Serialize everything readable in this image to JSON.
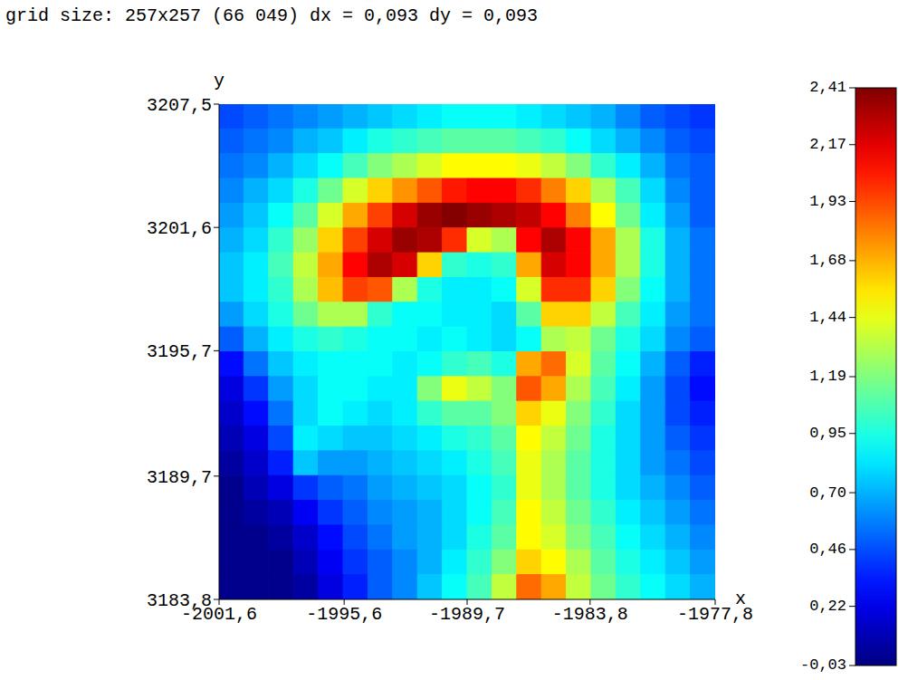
{
  "chart_data": {
    "type": "heatmap",
    "title": "grid size: 257x257 (66 049) dx = 0,093 dy = 0,093",
    "x_label": "x",
    "y_label": "y",
    "xlim": [
      -2001.6,
      -1977.8
    ],
    "ylim": [
      3183.8,
      3207.5
    ],
    "xticks": [
      {
        "value": -2001.6,
        "label": "-2001,6"
      },
      {
        "value": -1995.6,
        "label": "-1995,6"
      },
      {
        "value": -1989.7,
        "label": "-1989,7"
      },
      {
        "value": -1983.8,
        "label": "-1983,8"
      },
      {
        "value": -1977.8,
        "label": "-1977,8"
      }
    ],
    "yticks": [
      {
        "value": 3183.8,
        "label": "3183,8"
      },
      {
        "value": 3189.7,
        "label": "3189,7"
      },
      {
        "value": 3195.7,
        "label": "3195,7"
      },
      {
        "value": 3201.6,
        "label": "3201,6"
      },
      {
        "value": 3207.5,
        "label": "3207,5"
      }
    ],
    "x": [
      -2001.005,
      -1999.815,
      -1998.625,
      -1997.435,
      -1996.245,
      -1995.055,
      -1993.865,
      -1992.675,
      -1991.485,
      -1990.295,
      -1989.105,
      -1987.915,
      -1986.725,
      -1985.535,
      -1984.345,
      -1983.155,
      -1981.965,
      -1980.775,
      -1979.585,
      -1978.395
    ],
    "y": [
      3206.9075,
      3205.7225,
      3204.5375,
      3203.3525,
      3202.1675,
      3200.9825,
      3199.7975,
      3198.6125,
      3197.4275,
      3196.2425,
      3195.0575,
      3193.8725,
      3192.6875,
      3191.5025,
      3190.3175,
      3189.1325,
      3187.9475,
      3186.7625,
      3185.5775,
      3184.3925
    ],
    "z": [
      [
        0.45,
        0.5,
        0.55,
        0.6,
        0.65,
        0.7,
        0.75,
        0.8,
        0.85,
        0.9,
        0.9,
        0.9,
        0.85,
        0.8,
        0.75,
        0.7,
        0.6,
        0.5,
        0.45,
        0.4
      ],
      [
        0.5,
        0.55,
        0.6,
        0.7,
        0.75,
        0.85,
        0.95,
        1.0,
        1.05,
        1.1,
        1.1,
        1.1,
        1.05,
        1.0,
        0.9,
        0.8,
        0.7,
        0.6,
        0.5,
        0.45
      ],
      [
        0.55,
        0.6,
        0.7,
        0.8,
        0.9,
        1.05,
        1.2,
        1.3,
        1.4,
        1.5,
        1.5,
        1.5,
        1.45,
        1.35,
        1.2,
        1.0,
        0.85,
        0.7,
        0.55,
        0.5
      ],
      [
        0.6,
        0.7,
        0.8,
        0.95,
        1.15,
        1.4,
        1.6,
        1.75,
        1.9,
        2.05,
        2.1,
        2.1,
        2.0,
        1.8,
        1.6,
        1.3,
        1.05,
        0.8,
        0.6,
        0.5
      ],
      [
        0.65,
        0.75,
        0.9,
        1.1,
        1.4,
        1.7,
        1.95,
        2.2,
        2.35,
        2.4,
        2.35,
        2.3,
        2.25,
        2.1,
        1.8,
        1.5,
        1.15,
        0.85,
        0.65,
        0.5
      ],
      [
        0.7,
        0.8,
        1.0,
        1.25,
        1.6,
        1.95,
        2.2,
        2.35,
        2.3,
        2.0,
        1.4,
        1.3,
        2.1,
        2.3,
        2.1,
        1.7,
        1.3,
        0.95,
        0.7,
        0.55
      ],
      [
        0.75,
        0.85,
        1.05,
        1.35,
        1.7,
        2.1,
        2.3,
        2.2,
        1.6,
        1.0,
        0.95,
        1.0,
        1.7,
        2.2,
        2.1,
        1.7,
        1.3,
        0.95,
        0.7,
        0.55
      ],
      [
        0.75,
        0.85,
        1.0,
        1.3,
        1.65,
        1.95,
        1.9,
        1.3,
        0.95,
        0.85,
        0.85,
        0.9,
        1.4,
        2.0,
        2.0,
        1.6,
        1.2,
        0.9,
        0.7,
        0.55
      ],
      [
        0.65,
        0.8,
        0.95,
        1.15,
        1.3,
        1.3,
        1.0,
        0.9,
        0.9,
        0.85,
        0.85,
        0.8,
        1.1,
        1.6,
        1.6,
        1.35,
        1.05,
        0.85,
        0.65,
        0.55
      ],
      [
        0.5,
        0.7,
        0.85,
        0.95,
        1.0,
        0.95,
        0.9,
        0.9,
        0.85,
        0.9,
        0.85,
        0.8,
        0.9,
        1.3,
        1.35,
        1.15,
        0.95,
        0.8,
        0.6,
        0.5
      ],
      [
        0.3,
        0.55,
        0.75,
        0.85,
        0.9,
        0.9,
        0.9,
        0.85,
        0.9,
        1.0,
        1.05,
        0.95,
        1.7,
        1.85,
        1.4,
        1.1,
        0.9,
        0.7,
        0.5,
        0.35
      ],
      [
        0.2,
        0.4,
        0.65,
        0.8,
        0.9,
        0.9,
        0.85,
        0.85,
        1.2,
        1.45,
        1.35,
        1.2,
        1.9,
        1.7,
        1.3,
        1.05,
        0.85,
        0.65,
        0.45,
        0.3
      ],
      [
        0.15,
        0.3,
        0.55,
        0.8,
        0.9,
        0.85,
        0.8,
        0.85,
        1.0,
        1.1,
        1.1,
        1.2,
        1.6,
        1.45,
        1.2,
        1.0,
        0.8,
        0.65,
        0.45,
        0.35
      ],
      [
        0.1,
        0.2,
        0.45,
        0.85,
        0.8,
        0.75,
        0.75,
        0.8,
        0.85,
        0.95,
        1.0,
        1.1,
        1.5,
        1.35,
        1.15,
        0.95,
        0.8,
        0.65,
        0.5,
        0.4
      ],
      [
        0.05,
        0.15,
        0.35,
        0.75,
        0.65,
        0.65,
        0.7,
        0.75,
        0.8,
        0.85,
        0.95,
        1.05,
        1.45,
        1.3,
        1.1,
        0.95,
        0.8,
        0.65,
        0.55,
        0.45
      ],
      [
        0.0,
        0.1,
        0.2,
        0.4,
        0.5,
        0.55,
        0.65,
        0.7,
        0.75,
        0.8,
        0.9,
        1.0,
        1.45,
        1.3,
        1.1,
        0.95,
        0.8,
        0.7,
        0.6,
        0.5
      ],
      [
        0.0,
        0.05,
        0.1,
        0.25,
        0.4,
        0.5,
        0.6,
        0.65,
        0.7,
        0.8,
        0.9,
        1.05,
        1.5,
        1.35,
        1.15,
        1.0,
        0.85,
        0.75,
        0.65,
        0.55
      ],
      [
        0.0,
        0.0,
        0.05,
        0.15,
        0.3,
        0.45,
        0.55,
        0.65,
        0.7,
        0.8,
        0.95,
        1.1,
        1.5,
        1.4,
        1.2,
        1.05,
        0.9,
        0.8,
        0.7,
        0.6
      ],
      [
        0.0,
        0.0,
        0.0,
        0.1,
        0.25,
        0.4,
        0.5,
        0.6,
        0.7,
        0.85,
        1.0,
        1.2,
        1.6,
        1.5,
        1.3,
        1.1,
        0.95,
        0.85,
        0.75,
        0.65
      ],
      [
        0.0,
        0.0,
        0.0,
        0.05,
        0.2,
        0.35,
        0.5,
        0.6,
        0.75,
        0.9,
        1.05,
        1.35,
        1.85,
        1.7,
        1.35,
        1.15,
        1.0,
        0.9,
        0.8,
        0.7
      ]
    ],
    "colorbar": {
      "range": [
        -0.03,
        2.41
      ],
      "ticks": [
        {
          "value": -0.03,
          "label": "-0,03"
        },
        {
          "value": 0.22,
          "label": "0,22"
        },
        {
          "value": 0.46,
          "label": "0,46"
        },
        {
          "value": 0.7,
          "label": "0,70"
        },
        {
          "value": 0.95,
          "label": "0,95"
        },
        {
          "value": 1.19,
          "label": "1,19"
        },
        {
          "value": 1.44,
          "label": "1,44"
        },
        {
          "value": 1.68,
          "label": "1,68"
        },
        {
          "value": 1.93,
          "label": "1,93"
        },
        {
          "value": 2.17,
          "label": "2,17"
        },
        {
          "value": 2.41,
          "label": "2,41"
        }
      ]
    }
  }
}
